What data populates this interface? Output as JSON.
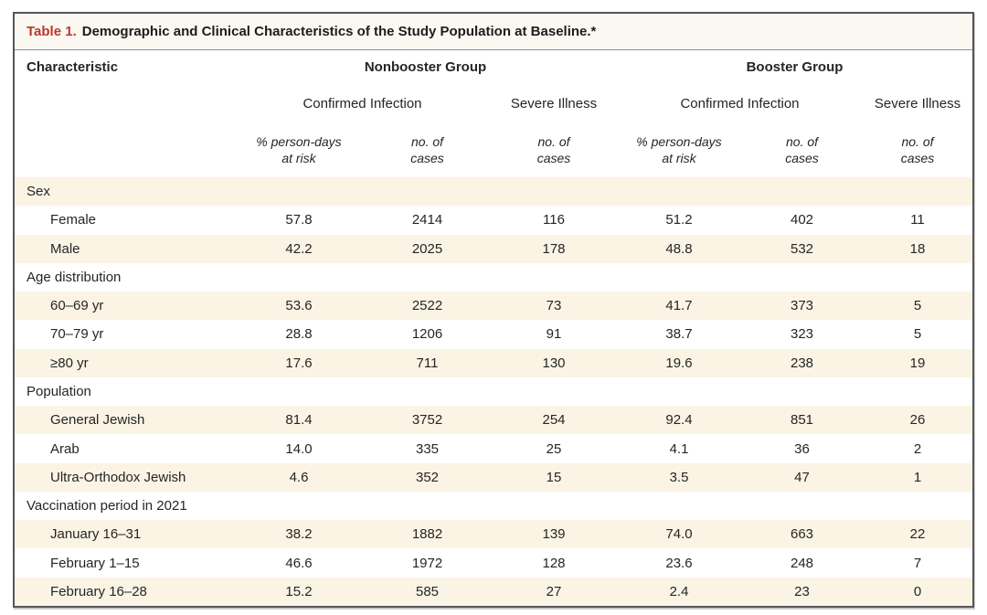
{
  "title": {
    "prefix": "Table 1.",
    "text": "Demographic and Clinical Characteristics of the Study Population at Baseline.*"
  },
  "columns": {
    "characteristic": "Characteristic",
    "group_headers": [
      "Nonbooster Group",
      "Booster Group"
    ],
    "outcome_headers": [
      "Confirmed Infection",
      "Severe Illness",
      "Confirmed Infection",
      "Severe Illness"
    ],
    "measure_headers": [
      {
        "line1": "% person-days",
        "line2": "at risk"
      },
      {
        "line1": "no. of",
        "line2": "cases"
      },
      {
        "line1": "no. of",
        "line2": "cases"
      },
      {
        "line1": "% person-days",
        "line2": "at risk"
      },
      {
        "line1": "no. of",
        "line2": "cases"
      },
      {
        "line1": "no. of",
        "line2": "cases"
      }
    ]
  },
  "rows": [
    {
      "label": "Sex",
      "section": true,
      "values": []
    },
    {
      "label": "Female",
      "values": [
        "57.8",
        "2414",
        "116",
        "51.2",
        "402",
        "11"
      ]
    },
    {
      "label": "Male",
      "values": [
        "42.2",
        "2025",
        "178",
        "48.8",
        "532",
        "18"
      ]
    },
    {
      "label": "Age distribution",
      "section": true,
      "values": []
    },
    {
      "label": "60–69 yr",
      "values": [
        "53.6",
        "2522",
        "73",
        "41.7",
        "373",
        "5"
      ]
    },
    {
      "label": "70–79 yr",
      "values": [
        "28.8",
        "1206",
        "91",
        "38.7",
        "323",
        "5"
      ]
    },
    {
      "label": "≥80 yr",
      "values": [
        "17.6",
        "711",
        "130",
        "19.6",
        "238",
        "19"
      ]
    },
    {
      "label": "Population",
      "section": true,
      "values": []
    },
    {
      "label": "General Jewish",
      "values": [
        "81.4",
        "3752",
        "254",
        "92.4",
        "851",
        "26"
      ]
    },
    {
      "label": "Arab",
      "values": [
        "14.0",
        "335",
        "25",
        "4.1",
        "36",
        "2"
      ]
    },
    {
      "label": "Ultra-Orthodox Jewish",
      "values": [
        "4.6",
        "352",
        "15",
        "3.5",
        "47",
        "1"
      ]
    },
    {
      "label": "Vaccination period in 2021",
      "section": true,
      "values": []
    },
    {
      "label": "January 16–31",
      "values": [
        "38.2",
        "1882",
        "139",
        "74.0",
        "663",
        "22"
      ]
    },
    {
      "label": "February 1–15",
      "values": [
        "46.6",
        "1972",
        "128",
        "23.6",
        "248",
        "7"
      ]
    },
    {
      "label": "February 16–28",
      "values": [
        "15.2",
        "585",
        "27",
        "2.4",
        "23",
        "0"
      ]
    }
  ],
  "colors": {
    "accent_red": "#bb372e",
    "row_cream": "#fbf4e5",
    "border_gray": "#55565a",
    "title_bg": "#faf8f1"
  },
  "chart_data": {
    "type": "table",
    "title": "Table 1. Demographic and Clinical Characteristics of the Study Population at Baseline.*",
    "column_groups": [
      "Nonbooster Group",
      "Booster Group"
    ],
    "column_subgroups": [
      "Confirmed Infection",
      "Severe Illness",
      "Confirmed Infection",
      "Severe Illness"
    ],
    "column_measures": [
      "% person-days at risk",
      "no. of cases",
      "no. of cases",
      "% person-days at risk",
      "no. of cases",
      "no. of cases"
    ],
    "sections": [
      {
        "name": "Sex",
        "rows": [
          {
            "label": "Female",
            "values": [
              57.8,
              2414,
              116,
              51.2,
              402,
              11
            ]
          },
          {
            "label": "Male",
            "values": [
              42.2,
              2025,
              178,
              48.8,
              532,
              18
            ]
          }
        ]
      },
      {
        "name": "Age distribution",
        "rows": [
          {
            "label": "60–69 yr",
            "values": [
              53.6,
              2522,
              73,
              41.7,
              373,
              5
            ]
          },
          {
            "label": "70–79 yr",
            "values": [
              28.8,
              1206,
              91,
              38.7,
              323,
              5
            ]
          },
          {
            "label": "≥80 yr",
            "values": [
              17.6,
              711,
              130,
              19.6,
              238,
              19
            ]
          }
        ]
      },
      {
        "name": "Population",
        "rows": [
          {
            "label": "General Jewish",
            "values": [
              81.4,
              3752,
              254,
              92.4,
              851,
              26
            ]
          },
          {
            "label": "Arab",
            "values": [
              14.0,
              335,
              25,
              4.1,
              36,
              2
            ]
          },
          {
            "label": "Ultra-Orthodox Jewish",
            "values": [
              4.6,
              352,
              15,
              3.5,
              47,
              1
            ]
          }
        ]
      },
      {
        "name": "Vaccination period in 2021",
        "rows": [
          {
            "label": "January 16–31",
            "values": [
              38.2,
              1882,
              139,
              74.0,
              663,
              22
            ]
          },
          {
            "label": "February 1–15",
            "values": [
              46.6,
              1972,
              128,
              23.6,
              248,
              7
            ]
          },
          {
            "label": "February 16–28",
            "values": [
              15.2,
              585,
              27,
              2.4,
              23,
              0
            ]
          }
        ]
      }
    ]
  }
}
